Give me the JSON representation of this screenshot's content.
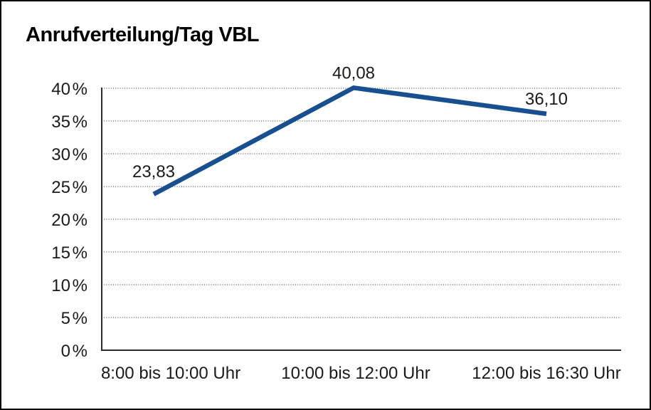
{
  "chart_data": {
    "type": "line",
    "title": "Anrufverteilung/Tag VBL",
    "categories": [
      "8:00 bis 10:00 Uhr",
      "10:00 bis 12:00 Uhr",
      "12:00 bis 16:30 Uhr"
    ],
    "values": [
      23.83,
      40.08,
      36.1
    ],
    "value_labels": [
      "23,83",
      "40,08",
      "36,10"
    ],
    "y_ticks": [
      "0 %",
      "5 %",
      "10 %",
      "15 %",
      "20 %",
      "25 %",
      "30 %",
      "35 %",
      "40 %"
    ],
    "ylim": [
      0,
      40
    ],
    "y_step": 5,
    "xlabel": "",
    "ylabel": "",
    "grid": "horizontal-dotted",
    "legend": "none",
    "colors": {
      "line": "#174f8f",
      "axis": "#2b2b2b",
      "grid": "#555555",
      "text": "#1a1a1a",
      "background": "#ffffff",
      "border": "#000000"
    }
  }
}
